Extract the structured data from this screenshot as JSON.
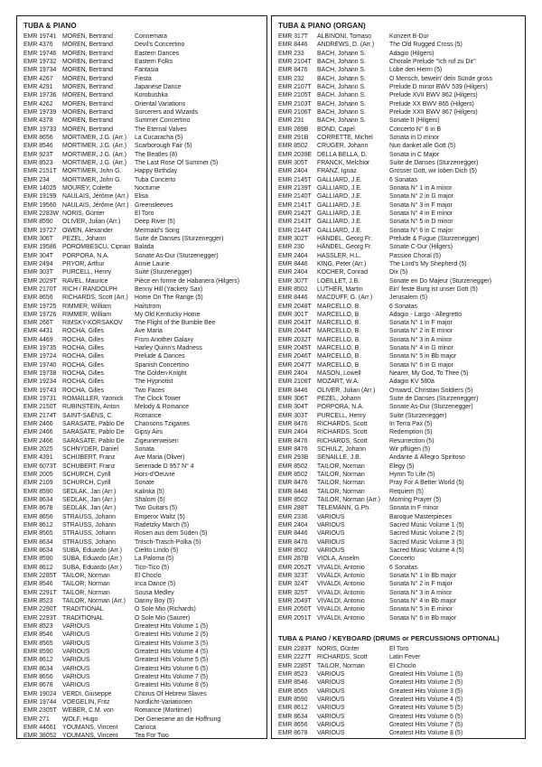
{
  "sections": [
    {
      "id": "tuba-piano",
      "title": "TUBA & PIANO",
      "columns": [
        "code",
        "composer",
        "title"
      ],
      "rows": [
        [
          "EMR 19741",
          "MOREN, Bertrand",
          "Connemara"
        ],
        [
          "EMR 4376",
          "MOREN, Bertrand",
          "Devil's Concertino"
        ],
        [
          "EMR 19746",
          "MOREN, Bertrand",
          "Eastern Dances"
        ],
        [
          "EMR 19732",
          "MOREN, Bertrand",
          "Eastern Folks"
        ],
        [
          "EMR 19734",
          "MOREN, Bertrand",
          "Fantasia"
        ],
        [
          "EMR 4267",
          "MOREN, Bertrand",
          "Fiesta"
        ],
        [
          "EMR 4291",
          "MOREN, Bertrand",
          "Japanese Dance"
        ],
        [
          "EMR 19736",
          "MOREN, Bertrand",
          "Korobushka"
        ],
        [
          "EMR 4262",
          "MOREN, Bertrand",
          "Oriental Variations"
        ],
        [
          "EMR 19739",
          "MOREN, Bertrand",
          "Sorcerers and Wizards"
        ],
        [
          "EMR 4378",
          "MOREN, Bertrand",
          "Summer Concertino"
        ],
        [
          "EMR 19733",
          "MOREN, Bertrand",
          "The Eternal Valves"
        ],
        [
          "EMR 8656",
          "MORTIMER, J.G. (Arr.)",
          "La Cucaracha (5)"
        ],
        [
          "EMR 8546",
          "MORTIMER, J.G. (Arr.)",
          "Scarborough Fair (5)"
        ],
        [
          "EMR 923T",
          "MORTIMER, J.G. (Arr.)",
          "The Beatles (8)"
        ],
        [
          "EMR 8523",
          "MORTIMER, J.G. (Arr.)",
          "The Last Rose Of Summer (5)"
        ],
        [
          "EMR 2151T",
          "MORTIMER, John G.",
          "Happy Birthday"
        ],
        [
          "EMR 234",
          "MORTIMER, John G.",
          "Tuba Concerto"
        ],
        [
          "EMR 14025",
          "MOUREY, Colette",
          "Nocturne"
        ],
        [
          "EMR 19199",
          "NAULAIS, Jérôme (Arr.)",
          "Elisa"
        ],
        [
          "EMR 19560",
          "NAULAIS, Jérôme (Arr.)",
          "Greensleeves"
        ],
        [
          "EMR 2283W",
          "NORIS, Günter",
          "El Toro"
        ],
        [
          "EMR 8590",
          "OLIVER, Julian (Arr.)",
          "Deep River (5)"
        ],
        [
          "EMR 19727",
          "OWEN, Alexander",
          "Mermaid's Song"
        ],
        [
          "EMR 306T",
          "PEZEL, Johann",
          "Suite de Danses (Sturzenegger)"
        ],
        [
          "EMR 19586",
          "POROMBESCU, Ciprian",
          "Balada"
        ],
        [
          "EMR 304T",
          "PORPORA, N.A.",
          "Sonate As-Dur (Sturzenegger)"
        ],
        [
          "EMR 2494",
          "PRYOR, Arthur",
          "Annie Laurie"
        ],
        [
          "EMR 303T",
          "PURCELL, Henry",
          "Suite (Sturzenegger)"
        ],
        [
          "EMR 2029T",
          "RAVEL, Maurice",
          "Pièce en forme de Habanera (Hilgers)"
        ],
        [
          "EMR 2170T",
          "RICH / RANDOLPH",
          "Benny Hill (Yackety Sax)"
        ],
        [
          "EMR 8656",
          "RICHARDS, Scott (Arr.)",
          "Home On The Range (5)"
        ],
        [
          "EMR 19725",
          "RIMMER, William",
          "Hailstrom"
        ],
        [
          "EMR 19726",
          "RIMMER, William",
          "My Old Kentucky Home"
        ],
        [
          "EMR 266T",
          "RIMSKY-KORSAKOV",
          "The Flight of the Bumble Bee"
        ],
        [
          "EMR 4431",
          "ROCHA, Gilles",
          "Ave Maria"
        ],
        [
          "EMR 4469",
          "ROCHA, Gilles",
          "From Another Galaxy"
        ],
        [
          "EMR 19735",
          "ROCHA, Gilles",
          "Harley Quinn's Madness"
        ],
        [
          "EMR 19724",
          "ROCHA, Gilles",
          "Prelude & Dances"
        ],
        [
          "EMR 19740",
          "ROCHA, Gilles",
          "Spanish Concertino"
        ],
        [
          "EMR 19738",
          "ROCHA, Gilles",
          "The Golden Knight"
        ],
        [
          "EMR 19234",
          "ROCHA, Gilles",
          "The Hypnotist"
        ],
        [
          "EMR 19743",
          "ROCHA, Gilles",
          "Two Faces"
        ],
        [
          "EMR 19731",
          "ROMAILLER, Yannick",
          "The Clock Tower"
        ],
        [
          "EMR 2150T",
          "RUBINSTEIN, Anton",
          "Melody & Romance"
        ],
        [
          "EMR 2174T",
          "SAINT-SAËNS, C.",
          "Romance"
        ],
        [
          "EMR 2466",
          "SARASATE, Pablo De",
          "Chansons Tziganes"
        ],
        [
          "EMR 2466",
          "SARASATE, Pablo De",
          "Gipsy Airs"
        ],
        [
          "EMR 2466",
          "SARASATE, Pablo De",
          "Zigeunerweisen"
        ],
        [
          "EMR 2025",
          "SCHNYDER, Daniel",
          "Sonata"
        ],
        [
          "EMR 4391",
          "SCHUBERT, Franz",
          "Ave Maria (Oliver)"
        ],
        [
          "EMR 6073T",
          "SCHUBERT, Franz",
          "Serenade D 957 N° 4"
        ],
        [
          "EMR 2005",
          "SCHÜRCH, Cyrill",
          "Hors-d'Oeuvre"
        ],
        [
          "EMR 2109",
          "SCHÜRCH, Cyrill",
          "Sonate"
        ],
        [
          "EMR 8590",
          "SEDLAK, Jan (Arr.)",
          "Kalinka (5)"
        ],
        [
          "EMR 8634",
          "SEDLAK, Jan (Arr.)",
          "Shalom (5)"
        ],
        [
          "EMR 8678",
          "SEDLAK, Jan (Arr.)",
          "Two Guitars (5)"
        ],
        [
          "EMR 8656",
          "STRAUSS, Johann",
          "Emperor Waltz (5)"
        ],
        [
          "EMR 8612",
          "STRAUSS, Johann",
          "Radetzky March (5)"
        ],
        [
          "EMR 8565",
          "STRAUSS, Johann",
          "Rosen aus dem Süden (5)"
        ],
        [
          "EMR 8634",
          "STRAUSS, Johann",
          "Tritsch-Trasch-Polka (5)"
        ],
        [
          "EMR 8634",
          "SUBA, Eduardo (Arr.)",
          "Cielito Lindo (5)"
        ],
        [
          "EMR 8590",
          "SUBA, Eduardo (Arr.)",
          "La Paloma (5)"
        ],
        [
          "EMR 8612",
          "SUBA, Eduardo (Arr.)",
          "Tico-Tico (5)"
        ],
        [
          "EMR 2285T",
          "TAILOR, Norman",
          "El Choclo"
        ],
        [
          "EMR 8546",
          "TAILOR, Norman",
          "Inca Dance (5)"
        ],
        [
          "EMR 2291T",
          "TAILOR, Norman",
          "Sousa Medley"
        ],
        [
          "EMR 8523",
          "TAILOR, Norman (Arr.)",
          "Danny Boy (5)"
        ],
        [
          "EMR 2290T",
          "TRADITIONAL",
          "O Sole Mio (Richards)"
        ],
        [
          "EMR 2293T",
          "TRADITIONAL",
          "O Sole Mio (Saurer)"
        ],
        [
          "EMR 8523",
          "VARIOUS",
          "Greatest Hits Volume 1 (5)"
        ],
        [
          "EMR 8546",
          "VARIOUS",
          "Greatest Hits Volume 2 (5)"
        ],
        [
          "EMR 8565",
          "VARIOUS",
          "Greatest Hits Volume 3 (5)"
        ],
        [
          "EMR 8590",
          "VARIOUS",
          "Greatest Hits Volume 4 (5)"
        ],
        [
          "EMR 8612",
          "VARIOUS",
          "Greatest Hits Volume 5 (5)"
        ],
        [
          "EMR 8634",
          "VARIOUS",
          "Greatest Hits Volume 6 (5)"
        ],
        [
          "EMR 8656",
          "VARIOUS",
          "Greatest Hits Volume 7 (5)"
        ],
        [
          "EMR 8678",
          "VARIOUS",
          "Greatest Hits Volume 8 (5)"
        ],
        [
          "EMR 19024",
          "VERDI, Giuseppe",
          "Chorus Of Hebrew Slaves"
        ],
        [
          "EMR 19744",
          "VOEGELIN, Fritz",
          "Nordlicht-Variationen"
        ],
        [
          "EMR 2305T",
          "WEBER, C.M. von",
          "Romance (Mortimer)"
        ],
        [
          "EMR 271",
          "WOLF, Hugo",
          "Der Genesene an die Hoffnung"
        ],
        [
          "EMR 44661",
          "YOUMANS, Vincent",
          "Carioca"
        ],
        [
          "EMR 38052",
          "YOUMANS, Vincent",
          "Tea For Two"
        ]
      ]
    },
    {
      "id": "tuba-piano-organ",
      "title": "TUBA & PIANO (ORGAN)",
      "columns": [
        "code",
        "composer",
        "title"
      ],
      "rows": [
        [
          "EMR 317T",
          "ALBINONI, Tomaso",
          "Konzert B-Dur"
        ],
        [
          "EMR 8446",
          "ANDREWS, D. (Arr.)",
          "The Old Rugged Cross (5)"
        ],
        [
          "EMR 233",
          "BACH, Johann S.",
          "Adagio (Hilgers)"
        ],
        [
          "EMR 2104T",
          "BACH, Johann S.",
          "Chorale Prelude \"Ich ruf zu Dir\""
        ],
        [
          "EMR 8476",
          "BACH, Johann S.",
          "Lobe den Herrn (5)"
        ],
        [
          "EMR 232",
          "BACH, Johann S.",
          "O Mensch, bewein' dein Sünde gross"
        ],
        [
          "EMR 2107T",
          "BACH, Johann S.",
          "Prelude D minor BWV 539 (Hilgers)"
        ],
        [
          "EMR 2105T",
          "BACH, Johann S.",
          "Prelude XVII BWV 862 (Hilgers)"
        ],
        [
          "EMR 2103T",
          "BACH, Johann S.",
          "Prelude XX BWV 865 (Hilgers)"
        ],
        [
          "EMR 2106T",
          "BACH, Johann S.",
          "Prelude XXII BWV 867 (Hilgers)"
        ],
        [
          "EMR 231",
          "BACH, Johann S.",
          "Sonate II (Hilgers)"
        ],
        [
          "EMR 289B",
          "BOND, Capel",
          "Concerto N° 6 in B"
        ],
        [
          "EMR 291B",
          "CORRETTE, Michel",
          "Sonata in D minor"
        ],
        [
          "EMR 8502",
          "CRÜGER, Johann",
          "Nun danket alle Gott (5)"
        ],
        [
          "EMR 2039E",
          "DELLA BELLA, D.",
          "Sonata in C Major"
        ],
        [
          "EMR 305T",
          "FRANCK, Melchior",
          "Suite de Danses (Sturzenegger)"
        ],
        [
          "EMR 2404",
          "FRANZ, Ignaz",
          "Grosser Gott, wir loben Dich (5)"
        ],
        [
          "EMR 2145T",
          "GALLIARD, J.E.",
          "6 Sonatas"
        ],
        [
          "EMR 2139T",
          "GALLIARD, J.E.",
          "Sonata N° 1 in A minor"
        ],
        [
          "EMR 2140T",
          "GALLIARD, J.E.",
          "Sonata N° 2 in G major"
        ],
        [
          "EMR 2141T",
          "GALLIARD, J.E.",
          "Sonata N° 3 in F major"
        ],
        [
          "EMR 2142T",
          "GALLIARD, J.E.",
          "Sonata N° 4 in E minor"
        ],
        [
          "EMR 2143T",
          "GALLIARD, J.E.",
          "Sonata N° 5 in D minor"
        ],
        [
          "EMR 2144T",
          "GALLIARD, J.E.",
          "Sonata N° 6 in C major"
        ],
        [
          "EMR 302T",
          "HÄNDEL, Georg Fr.",
          "Prelude & Fugue (Sturzenegger)"
        ],
        [
          "EMR 230",
          "HÄNDEL, Georg Fr.",
          "Sonate C-Dur (Hilgers)"
        ],
        [
          "EMR 2404",
          "HASSLER, H.L.",
          "Passion Choral (5)"
        ],
        [
          "EMR 8446",
          "KING, Peter (Arr.)",
          "The Lord's My Shepherd (5)"
        ],
        [
          "EMR 2404",
          "KOCHER, Conrad",
          "Dix (5)"
        ],
        [
          "EMR 307T",
          "LOEILLET, J.B.",
          "Sonate en Do Majeur (Sturzenegger)"
        ],
        [
          "EMR 8502",
          "LUTHER, Martin",
          "Ein' feste Burg ist unser Gott (5)"
        ],
        [
          "EMR 8446",
          "MACDUFF, G. (Arr.)",
          "Jerusalem (5)"
        ],
        [
          "EMR 2048T",
          "MARCELLO, B.",
          "6 Sonatas"
        ],
        [
          "EMR 301T",
          "MARCELLO, B.",
          "Adagio - Largo - Allegretto"
        ],
        [
          "EMR 2043T",
          "MARCELLO, B.",
          "Sonata N° 1 in F major"
        ],
        [
          "EMR 2044T",
          "MARCELLO, B.",
          "Sonata N° 2 in E minor"
        ],
        [
          "EMR 2032T",
          "MARCELLO, B.",
          "Sonata N° 3 in A minor"
        ],
        [
          "EMR 2045T",
          "MARCELLO, B.",
          "Sonata N° 4 in G minor"
        ],
        [
          "EMR 2046T",
          "MARCELLO, B.",
          "Sonata N° 5 in Bb major"
        ],
        [
          "EMR 2047T",
          "MARCELLO, B.",
          "Sonata N° 6 in G major"
        ],
        [
          "EMR 2404",
          "MASON, Lowell",
          "Nearer, My God, To Thee (5)"
        ],
        [
          "EMR 2108T",
          "MOZART, W.A.",
          "Adagio KV 580a"
        ],
        [
          "EMR 8446",
          "OLIVER, Julian (Arr.)",
          "Onward, Christian Soldiers (5)"
        ],
        [
          "EMR 306T",
          "PEZEL, Johann",
          "Suite de Danses (Sturzenegger)"
        ],
        [
          "EMR 304T",
          "PORPORA, N.A.",
          "Sonate As-Dur (Sturzenegger)"
        ],
        [
          "EMR 303T",
          "PURCELL, Henry",
          "Suite (Sturzenegger)"
        ],
        [
          "EMR 8476",
          "RICHARDS, Scott",
          "In Terra Pax (5)"
        ],
        [
          "EMR 2404",
          "RICHARDS, Scott",
          "Redemption (5)"
        ],
        [
          "EMR 8476",
          "RICHARDS, Scott",
          "Resurrection (5)"
        ],
        [
          "EMR 8476",
          "SCHULZ, Johann",
          "Wir pflügen (5)"
        ],
        [
          "EMR 293B",
          "SENAILLE, J.B.",
          "Andante & Allegro Spiritoso"
        ],
        [
          "EMR 8502",
          "TAILOR, Norman",
          "Elegy (5)"
        ],
        [
          "EMR 8502",
          "TAILOR, Norman",
          "Hymn To Life (5)"
        ],
        [
          "EMR 8476",
          "TAILOR, Norman",
          "Pray For A Better World (5)"
        ],
        [
          "EMR 8446",
          "TAILOR, Norman",
          "Requiem (5)"
        ],
        [
          "EMR 8502",
          "TAILOR, Norman (Arr.)",
          "Morning Prayer (5)"
        ],
        [
          "EMR 288T",
          "TELEMANN, G.Ph.",
          "Sonata in F minor"
        ],
        [
          "EMR 2336",
          "VARIOUS",
          "Baroque Masterpieces"
        ],
        [
          "EMR 2404",
          "VARIOUS",
          "Sacred Music Volume 1 (5)"
        ],
        [
          "EMR 8446",
          "VARIOUS",
          "Sacred Music Volume 2 (5)"
        ],
        [
          "EMR 8476",
          "VARIOUS",
          "Sacred Music Volume 3 (5)"
        ],
        [
          "EMR 8502",
          "VARIOUS",
          "Sacred Music Volume 4 (5)"
        ],
        [
          "EMR 287B",
          "VIOLA, Anselm",
          "Concerto"
        ],
        [
          "EMR 2052T",
          "VIVALDI, Antonio",
          "6 Sonatas"
        ],
        [
          "EMR 323T",
          "VIVALDI, Antonio",
          "Sonata N° 1 in Bb major"
        ],
        [
          "EMR 324T",
          "VIVALDI, Antonio",
          "Sonata N° 2 in F major"
        ],
        [
          "EMR 325T",
          "VIVALDI, Antonio",
          "Sonata N° 3 in A minor"
        ],
        [
          "EMR 2049T",
          "VIVALDI, Antonio",
          "Sonata N° 4 in Bb major"
        ],
        [
          "EMR 2050T",
          "VIVALDI, Antonio",
          "Sonata N° 5 in E minor"
        ],
        [
          "EMR 2051T",
          "VIVALDI, Antonio",
          "Sonata N° 6 in Bb major"
        ]
      ]
    },
    {
      "id": "tuba-piano-keyboard",
      "title": "TUBA & PIANO / KEYBOARD (DRUMS or PERCUSSIONS OPTIONAL)",
      "columns": [
        "code",
        "composer",
        "title"
      ],
      "rows": [
        [
          "EMR 2283T",
          "NORIS, Günter",
          "El Toro"
        ],
        [
          "EMR 2227T",
          "RICHARDS, Scott",
          "Latin Fever"
        ],
        [
          "EMR 2285T",
          "TAILOR, Norman",
          "El Choclo"
        ],
        [
          "EMR 8523",
          "VARIOUS",
          "Greatest Hits Volume 1 (5)"
        ],
        [
          "EMR 8546",
          "VARIOUS",
          "Greatest Hits Volume 2 (5)"
        ],
        [
          "EMR 8565",
          "VARIOUS",
          "Greatest Hits Volume 3 (5)"
        ],
        [
          "EMR 8590",
          "VARIOUS",
          "Greatest Hits Volume 4 (5)"
        ],
        [
          "EMR 8612",
          "VARIOUS",
          "Greatest Hits Volume 5 (5)"
        ],
        [
          "EMR 8634",
          "VARIOUS",
          "Greatest Hits Volume 6 (5)"
        ],
        [
          "EMR 8656",
          "VARIOUS",
          "Greatest Hits Volume 7 (5)"
        ],
        [
          "EMR 8678",
          "VARIOUS",
          "Greatest Hits Volume 8 (5)"
        ]
      ]
    }
  ]
}
